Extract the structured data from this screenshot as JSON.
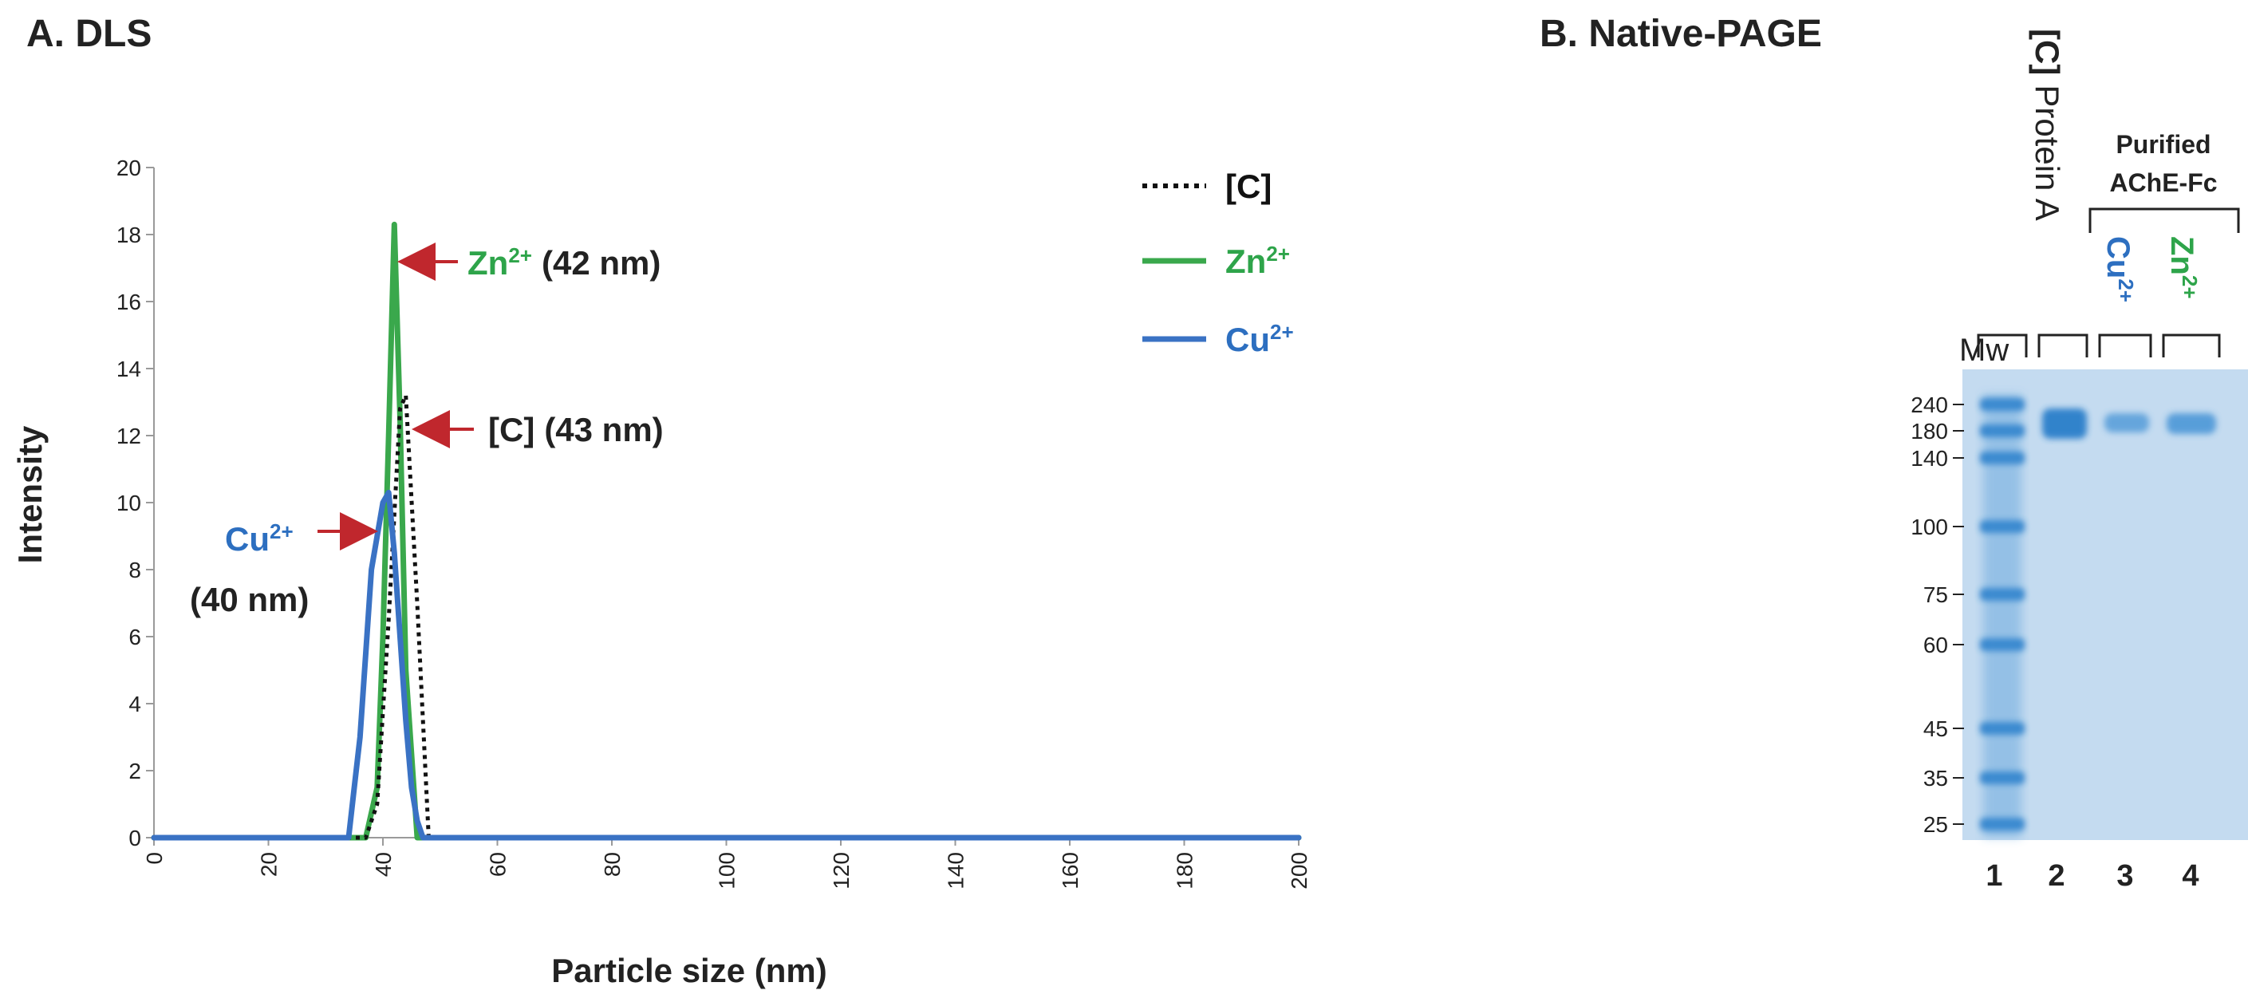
{
  "panel_a": {
    "title": "A. DLS",
    "annotations": {
      "zn": {
        "ion": "Zn",
        "charge": "2+",
        "size": "(42 nm)"
      },
      "c": {
        "label": "[C]",
        "size": "(43 nm)"
      },
      "cu": {
        "ion": "Cu",
        "charge": "2+",
        "size": "(40 nm)"
      }
    }
  },
  "panel_b": {
    "title": "B. Native-PAGE",
    "lane_labels": {
      "mw": "Mw",
      "c_bracket": "[C]",
      "protein_a": "Protein A",
      "cu": "Cu",
      "cu_charge": "2+",
      "zn": "Zn",
      "zn_charge": "2+"
    },
    "header": {
      "line1": "Purified",
      "line2": "AChE-Fc"
    },
    "mw_markers": [
      "240",
      "180",
      "140",
      "100",
      "75",
      "60",
      "45",
      "35",
      "25"
    ],
    "lane_numbers": [
      "1",
      "2",
      "3",
      "4"
    ],
    "gel_colors": {
      "background": "#c4dbf0",
      "band": "#3c8fd4",
      "band_strong": "#2b7fca"
    }
  },
  "chart_data": [
    {
      "type": "line",
      "title": "A. DLS",
      "xlabel": "Particle size (nm)",
      "ylabel": "Intensity",
      "xlim": [
        0,
        200
      ],
      "ylim": [
        0,
        20
      ],
      "xticks": [
        0,
        20,
        40,
        60,
        80,
        100,
        120,
        140,
        160,
        180,
        200
      ],
      "yticks": [
        0,
        2,
        4,
        6,
        8,
        10,
        12,
        14,
        16,
        18,
        20
      ],
      "grid": false,
      "legend": "top-right",
      "series": [
        {
          "name": "[C]",
          "color": "#111111",
          "style": "dotted",
          "x": [
            0,
            37,
            39,
            41,
            43,
            44,
            46,
            48,
            200
          ],
          "y": [
            0,
            0,
            1.0,
            6.5,
            12.8,
            13.2,
            7.0,
            0,
            0
          ]
        },
        {
          "name": "Zn2+",
          "color": "#3aa84c",
          "style": "solid",
          "x": [
            0,
            37,
            39,
            40,
            41,
            42,
            43,
            44,
            46,
            200
          ],
          "y": [
            0,
            0,
            1.5,
            6.0,
            12.0,
            18.3,
            12.5,
            5.0,
            0,
            0
          ],
          "legend_label": "Zn",
          "legend_charge": "2+"
        },
        {
          "name": "Cu2+",
          "color": "#3a72c4",
          "style": "solid",
          "x": [
            0,
            34,
            35,
            36,
            37,
            38,
            39,
            40,
            41,
            42,
            43,
            44,
            45,
            46,
            47,
            200
          ],
          "y": [
            0,
            0,
            1.5,
            3.0,
            5.5,
            8.0,
            9.0,
            10.0,
            10.3,
            8.5,
            6.0,
            3.5,
            1.5,
            0.5,
            0,
            0
          ],
          "legend_label": "Cu",
          "legend_charge": "2+"
        }
      ]
    }
  ]
}
